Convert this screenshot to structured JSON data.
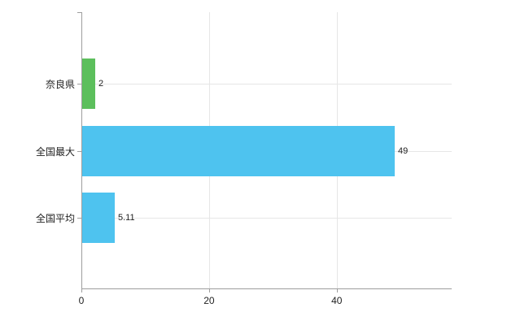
{
  "chart_data": {
    "type": "bar",
    "orientation": "horizontal",
    "title": "",
    "categories": [
      "奈良県",
      "全国最大",
      "全国平均"
    ],
    "values": [
      2,
      49,
      5.11
    ],
    "value_labels": [
      "2",
      "49",
      "5.11"
    ],
    "bar_colors": [
      "#5cbf5c",
      "#4ec3ef",
      "#4ec3ef"
    ],
    "xlim": [
      0,
      58
    ],
    "xticks": [
      0,
      20,
      40
    ],
    "xtick_labels": [
      "0",
      "20",
      "40"
    ],
    "grid": true,
    "legend": "none",
    "background_color": "#ffffff",
    "axis_color": "#9e9e9e",
    "grid_color": "#e6e6e6"
  }
}
